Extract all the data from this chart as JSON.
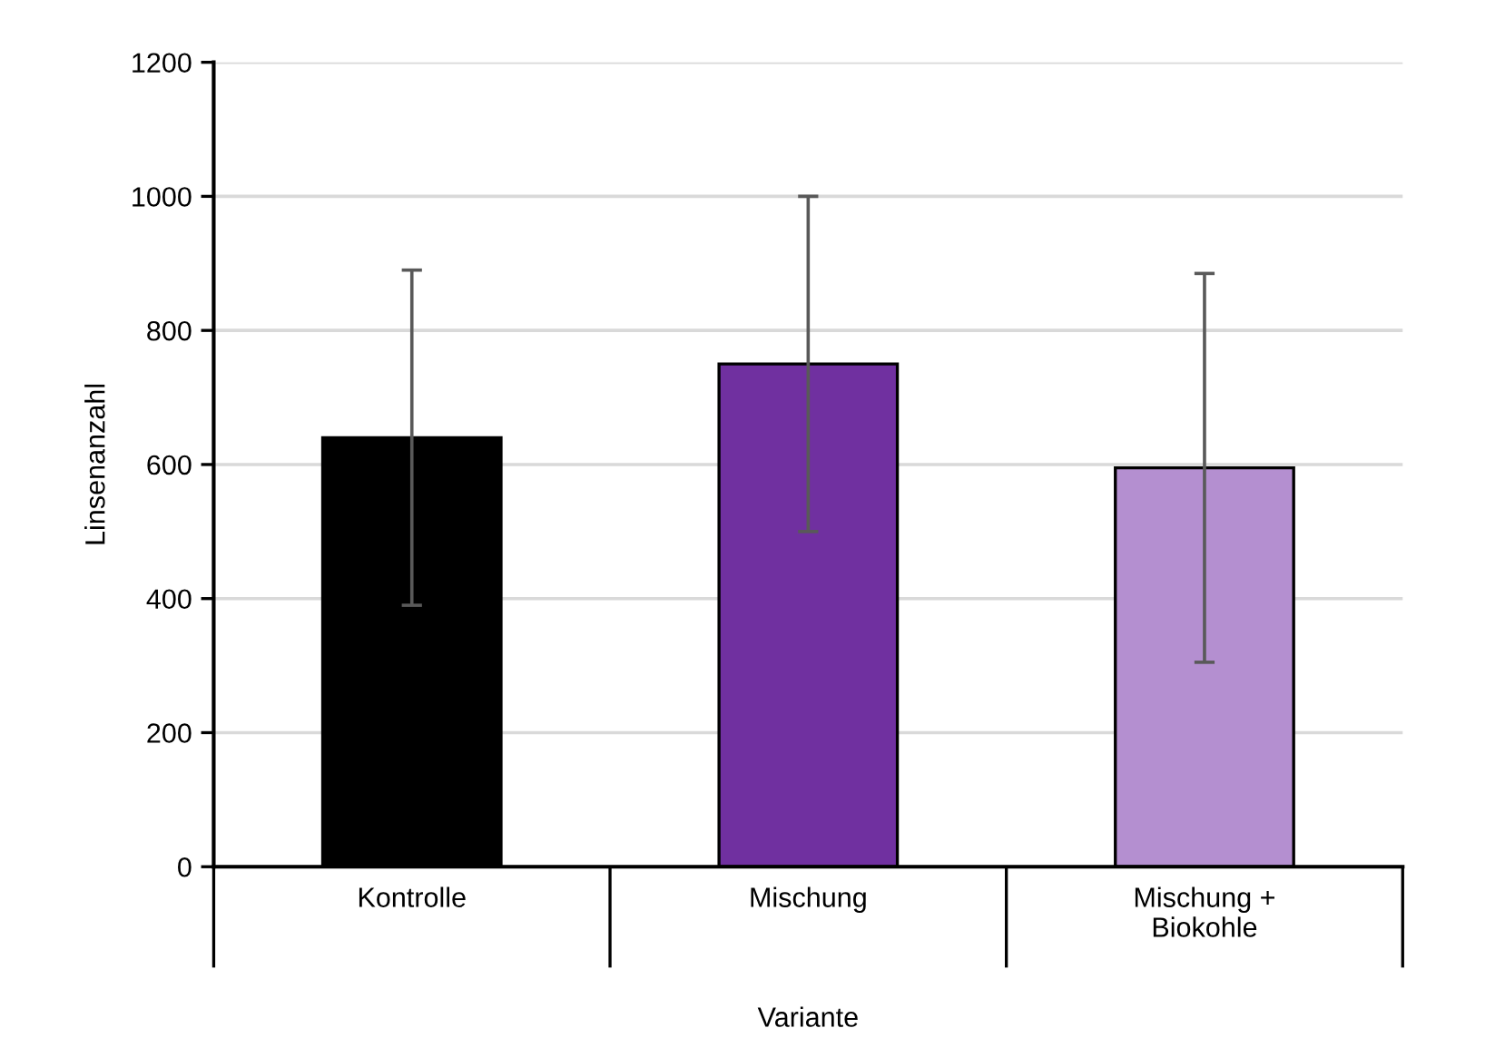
{
  "chart_data": {
    "type": "bar",
    "xlabel": "Variante",
    "ylabel": "Linsenanzahl",
    "categories": [
      "Kontrolle",
      "Mischung",
      "Mischung +\nBiokohle"
    ],
    "values": [
      640,
      750,
      595
    ],
    "errors": [
      250,
      250,
      290
    ],
    "colors": [
      "#000000",
      "#7030a0",
      "#b48fd0"
    ],
    "ylim": [
      0,
      1200
    ],
    "yticks": [
      0,
      200,
      400,
      600,
      800,
      1000,
      1200
    ],
    "grid": "y"
  }
}
